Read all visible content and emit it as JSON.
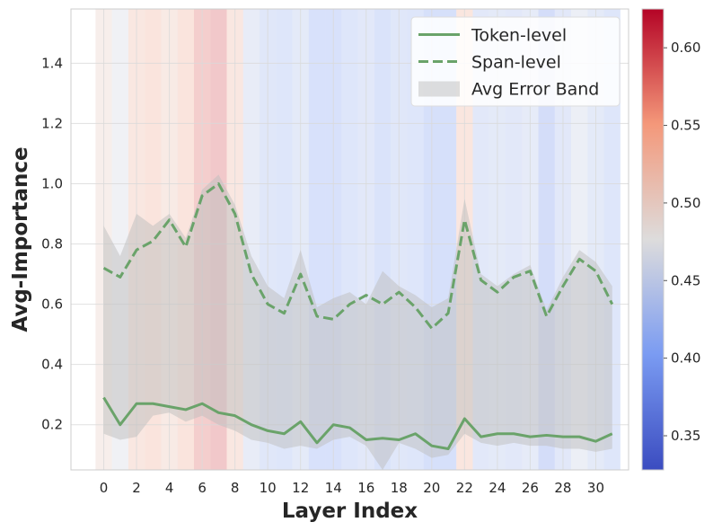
{
  "chart_data": {
    "type": "line",
    "xlabel": "Layer Index",
    "ylabel": "Avg-Importance",
    "xlim": [
      -2,
      32
    ],
    "ylim": [
      0.05,
      1.58
    ],
    "xticks": [
      0,
      2,
      4,
      6,
      8,
      10,
      12,
      14,
      16,
      18,
      20,
      22,
      24,
      26,
      28,
      30
    ],
    "yticks": [
      0.2,
      0.4,
      0.6,
      0.8,
      1.0,
      1.2,
      1.4
    ],
    "ytick_labels": [
      "0.2",
      "0.4",
      "0.6",
      "0.8",
      "1.0",
      "1.2",
      "1.4"
    ],
    "grid": true,
    "legend_position": "top-right",
    "x": [
      0,
      1,
      2,
      3,
      4,
      5,
      6,
      7,
      8,
      9,
      10,
      11,
      12,
      13,
      14,
      15,
      16,
      17,
      18,
      19,
      20,
      21,
      22,
      23,
      24,
      25,
      26,
      27,
      28,
      29,
      30,
      31
    ],
    "series": [
      {
        "name": "Token-level",
        "style": "solid",
        "color": "#6aa36a",
        "values": [
          0.29,
          0.2,
          0.27,
          0.27,
          0.26,
          0.25,
          0.27,
          0.24,
          0.23,
          0.2,
          0.18,
          0.17,
          0.21,
          0.14,
          0.2,
          0.19,
          0.15,
          0.155,
          0.15,
          0.17,
          0.13,
          0.12,
          0.22,
          0.16,
          0.17,
          0.17,
          0.16,
          0.165,
          0.16,
          0.16,
          0.145,
          0.17
        ]
      },
      {
        "name": "Span-level",
        "style": "dashed",
        "color": "#6aa36a",
        "values": [
          0.72,
          0.69,
          0.78,
          0.81,
          0.88,
          0.79,
          0.96,
          1.0,
          0.9,
          0.7,
          0.6,
          0.57,
          0.7,
          0.56,
          0.55,
          0.6,
          0.63,
          0.6,
          0.64,
          0.59,
          0.52,
          0.57,
          0.88,
          0.68,
          0.64,
          0.69,
          0.71,
          0.56,
          0.66,
          0.75,
          0.71,
          0.6
        ]
      }
    ],
    "error_band": {
      "name": "Avg Error Band",
      "color": "#bdbdbd",
      "upper": [
        0.86,
        0.76,
        0.9,
        0.86,
        0.9,
        0.82,
        0.98,
        1.03,
        0.93,
        0.76,
        0.66,
        0.62,
        0.78,
        0.59,
        0.62,
        0.64,
        0.6,
        0.71,
        0.66,
        0.63,
        0.59,
        0.62,
        0.95,
        0.7,
        0.66,
        0.7,
        0.73,
        0.58,
        0.69,
        0.78,
        0.74,
        0.66
      ],
      "lower": [
        0.17,
        0.15,
        0.16,
        0.23,
        0.24,
        0.21,
        0.23,
        0.2,
        0.18,
        0.15,
        0.14,
        0.12,
        0.13,
        0.12,
        0.15,
        0.16,
        0.13,
        0.05,
        0.14,
        0.12,
        0.09,
        0.1,
        0.17,
        0.14,
        0.13,
        0.14,
        0.13,
        0.13,
        0.12,
        0.12,
        0.11,
        0.12
      ]
    },
    "layer_values": [
      0.5,
      0.465,
      0.525,
      0.535,
      0.515,
      0.535,
      0.58,
      0.59,
      0.525,
      0.445,
      0.425,
      0.42,
      0.435,
      0.405,
      0.405,
      0.42,
      0.43,
      0.41,
      0.425,
      0.42,
      0.4,
      0.4,
      0.53,
      0.43,
      0.435,
      0.43,
      0.44,
      0.39,
      0.43,
      0.455,
      0.435,
      0.42
    ],
    "colorbar": {
      "vmin": 0.328,
      "vmax": 0.625,
      "ticks": [
        0.35,
        0.4,
        0.45,
        0.5,
        0.55,
        0.6
      ],
      "tick_labels": [
        "0.35",
        "0.40",
        "0.45",
        "0.50",
        "0.55",
        "0.60"
      ],
      "colormap": "coolwarm"
    }
  }
}
